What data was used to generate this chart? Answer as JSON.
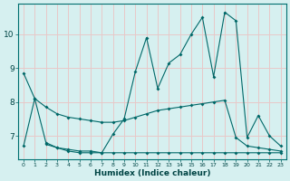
{
  "xlabel": "Humidex (Indice chaleur)",
  "background_color": "#d6f0f0",
  "grid_color": "#e8c8c8",
  "line_color": "#006868",
  "xlim": [
    -0.5,
    23.5
  ],
  "ylim": [
    6.3,
    10.9
  ],
  "yticks": [
    7,
    8,
    9,
    10
  ],
  "xticks": [
    0,
    1,
    2,
    3,
    4,
    5,
    6,
    7,
    8,
    9,
    10,
    11,
    12,
    13,
    14,
    15,
    16,
    17,
    18,
    19,
    20,
    21,
    22,
    23
  ],
  "line1_x": [
    0,
    1,
    2,
    3,
    4,
    5,
    6,
    7,
    8,
    9,
    10,
    11,
    12,
    13,
    14,
    15,
    16,
    17,
    18,
    19,
    20,
    21,
    22,
    23
  ],
  "line1_y": [
    8.85,
    8.1,
    6.8,
    6.65,
    6.55,
    6.5,
    6.5,
    6.5,
    7.05,
    7.5,
    8.9,
    9.9,
    8.4,
    9.15,
    9.4,
    10.0,
    10.5,
    8.75,
    10.65,
    10.4,
    6.95,
    7.6,
    7.0,
    6.7
  ],
  "line2_x": [
    2,
    3,
    4,
    5,
    6,
    7,
    8,
    9,
    10,
    11,
    12,
    13,
    14,
    15,
    16,
    17,
    18,
    19,
    20,
    21,
    22,
    23
  ],
  "line2_y": [
    6.75,
    6.65,
    6.6,
    6.55,
    6.55,
    6.5,
    6.5,
    6.5,
    6.5,
    6.5,
    6.5,
    6.5,
    6.5,
    6.5,
    6.5,
    6.5,
    6.5,
    6.5,
    6.5,
    6.5,
    6.5,
    6.5
  ],
  "line3_x": [
    0,
    1,
    2,
    3,
    4,
    5,
    6,
    7,
    8,
    9,
    10,
    11,
    12,
    13,
    14,
    15,
    16,
    17,
    18,
    19,
    20,
    21,
    22,
    23
  ],
  "line3_y": [
    6.7,
    8.1,
    7.85,
    7.65,
    7.55,
    7.5,
    7.45,
    7.4,
    7.4,
    7.45,
    7.55,
    7.65,
    7.75,
    7.8,
    7.85,
    7.9,
    7.95,
    8.0,
    8.05,
    6.95,
    6.7,
    6.65,
    6.6,
    6.55
  ]
}
